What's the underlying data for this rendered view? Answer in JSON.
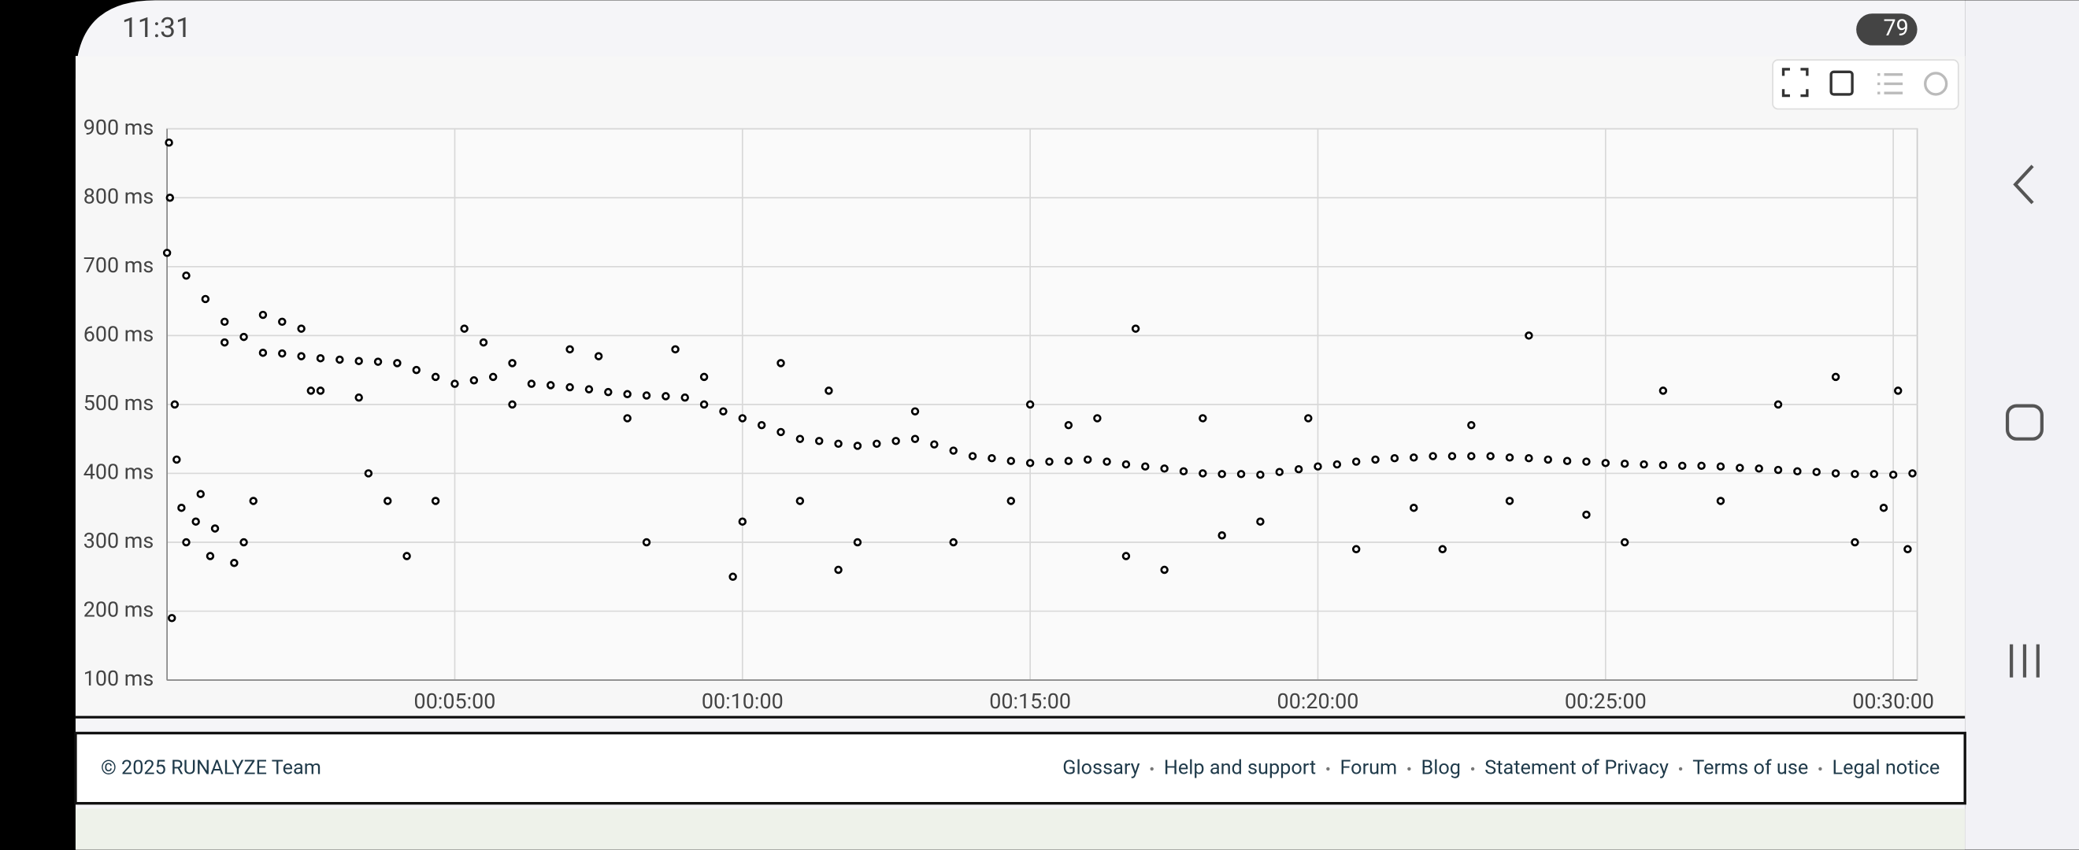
{
  "status_bar": {
    "time": "11:31",
    "battery": "79"
  },
  "chart_data": {
    "type": "scatter",
    "color": "#000000",
    "grid": true,
    "xlim": [
      0,
      1825
    ],
    "ylim": [
      100,
      900
    ],
    "xticks": [
      {
        "value": 300,
        "label": "00:05:00"
      },
      {
        "value": 600,
        "label": "00:10:00"
      },
      {
        "value": 900,
        "label": "00:15:00"
      },
      {
        "value": 1200,
        "label": "00:20:00"
      },
      {
        "value": 1500,
        "label": "00:25:00"
      },
      {
        "value": 1800,
        "label": "00:30:00"
      }
    ],
    "yticks": [
      {
        "value": 100,
        "label": "100 ms"
      },
      {
        "value": 200,
        "label": "200 ms"
      },
      {
        "value": 300,
        "label": "300 ms"
      },
      {
        "value": 400,
        "label": "400 ms"
      },
      {
        "value": 500,
        "label": "500 ms"
      },
      {
        "value": 600,
        "label": "600 ms"
      },
      {
        "value": 700,
        "label": "700 ms"
      },
      {
        "value": 800,
        "label": "800 ms"
      },
      {
        "value": 900,
        "label": "900 ms"
      }
    ],
    "x": [
      0,
      20,
      40,
      60,
      80,
      100,
      120,
      140,
      160,
      180,
      200,
      220,
      240,
      260,
      280,
      300,
      320,
      340,
      360,
      380,
      400,
      420,
      440,
      460,
      480,
      500,
      520,
      540,
      560,
      580,
      600,
      620,
      640,
      660,
      680,
      700,
      720,
      740,
      760,
      780,
      800,
      820,
      840,
      860,
      880,
      900,
      920,
      940,
      960,
      980,
      1000,
      1020,
      1040,
      1060,
      1080,
      1100,
      1120,
      1140,
      1160,
      1180,
      1200,
      1220,
      1240,
      1260,
      1280,
      1300,
      1320,
      1340,
      1360,
      1380,
      1400,
      1420,
      1440,
      1460,
      1480,
      1500,
      1520,
      1540,
      1560,
      1580,
      1600,
      1620,
      1640,
      1660,
      1680,
      1700,
      1720,
      1740,
      1760,
      1780,
      1800,
      1820,
      2,
      3,
      5,
      8,
      10,
      15,
      20,
      30,
      35,
      45,
      50,
      60,
      70,
      80,
      90,
      100,
      120,
      140,
      150,
      160,
      200,
      210,
      230,
      250,
      280,
      310,
      330,
      360,
      420,
      450,
      480,
      500,
      530,
      560,
      590,
      600,
      640,
      660,
      690,
      700,
      720,
      780,
      820,
      880,
      900,
      940,
      970,
      1000,
      1010,
      1040,
      1080,
      1100,
      1140,
      1190,
      1240,
      1300,
      1330,
      1360,
      1400,
      1420,
      1480,
      1520,
      1560,
      1620,
      1680,
      1740,
      1760,
      1790,
      1805,
      1815
    ],
    "values": [
      720,
      687,
      653,
      620,
      598,
      575,
      574,
      570,
      567,
      565,
      563,
      562,
      560,
      550,
      540,
      530,
      535,
      540,
      560,
      530,
      528,
      525,
      522,
      518,
      515,
      513,
      512,
      510,
      500,
      490,
      480,
      470,
      460,
      450,
      447,
      443,
      440,
      443,
      447,
      450,
      442,
      433,
      425,
      422,
      418,
      415,
      417,
      418,
      420,
      417,
      413,
      410,
      407,
      403,
      400,
      399,
      399,
      398,
      402,
      406,
      410,
      413,
      417,
      420,
      422,
      423,
      425,
      425,
      425,
      425,
      423,
      422,
      420,
      418,
      417,
      415,
      414,
      413,
      412,
      411,
      411,
      410,
      408,
      407,
      405,
      403,
      402,
      400,
      399,
      399,
      398,
      400,
      880,
      800,
      190,
      500,
      420,
      350,
      300,
      330,
      370,
      280,
      320,
      590,
      270,
      300,
      360,
      630,
      620,
      610,
      520,
      520,
      510,
      400,
      360,
      280,
      360,
      610,
      590,
      500,
      580,
      570,
      480,
      300,
      580,
      540,
      250,
      330,
      560,
      360,
      520,
      260,
      300,
      490,
      300,
      360,
      500,
      470,
      480,
      280,
      610,
      260,
      480,
      310,
      330,
      480,
      290,
      350,
      290,
      470,
      360,
      600,
      340,
      300,
      520,
      360,
      500,
      540,
      300,
      350,
      520,
      290
    ]
  },
  "footer": {
    "copyright": "© 2025 RUNALYZE Team",
    "links": [
      "Glossary",
      "Help and support",
      "Forum",
      "Blog",
      "Statement of Privacy",
      "Terms of use",
      "Legal notice"
    ]
  }
}
